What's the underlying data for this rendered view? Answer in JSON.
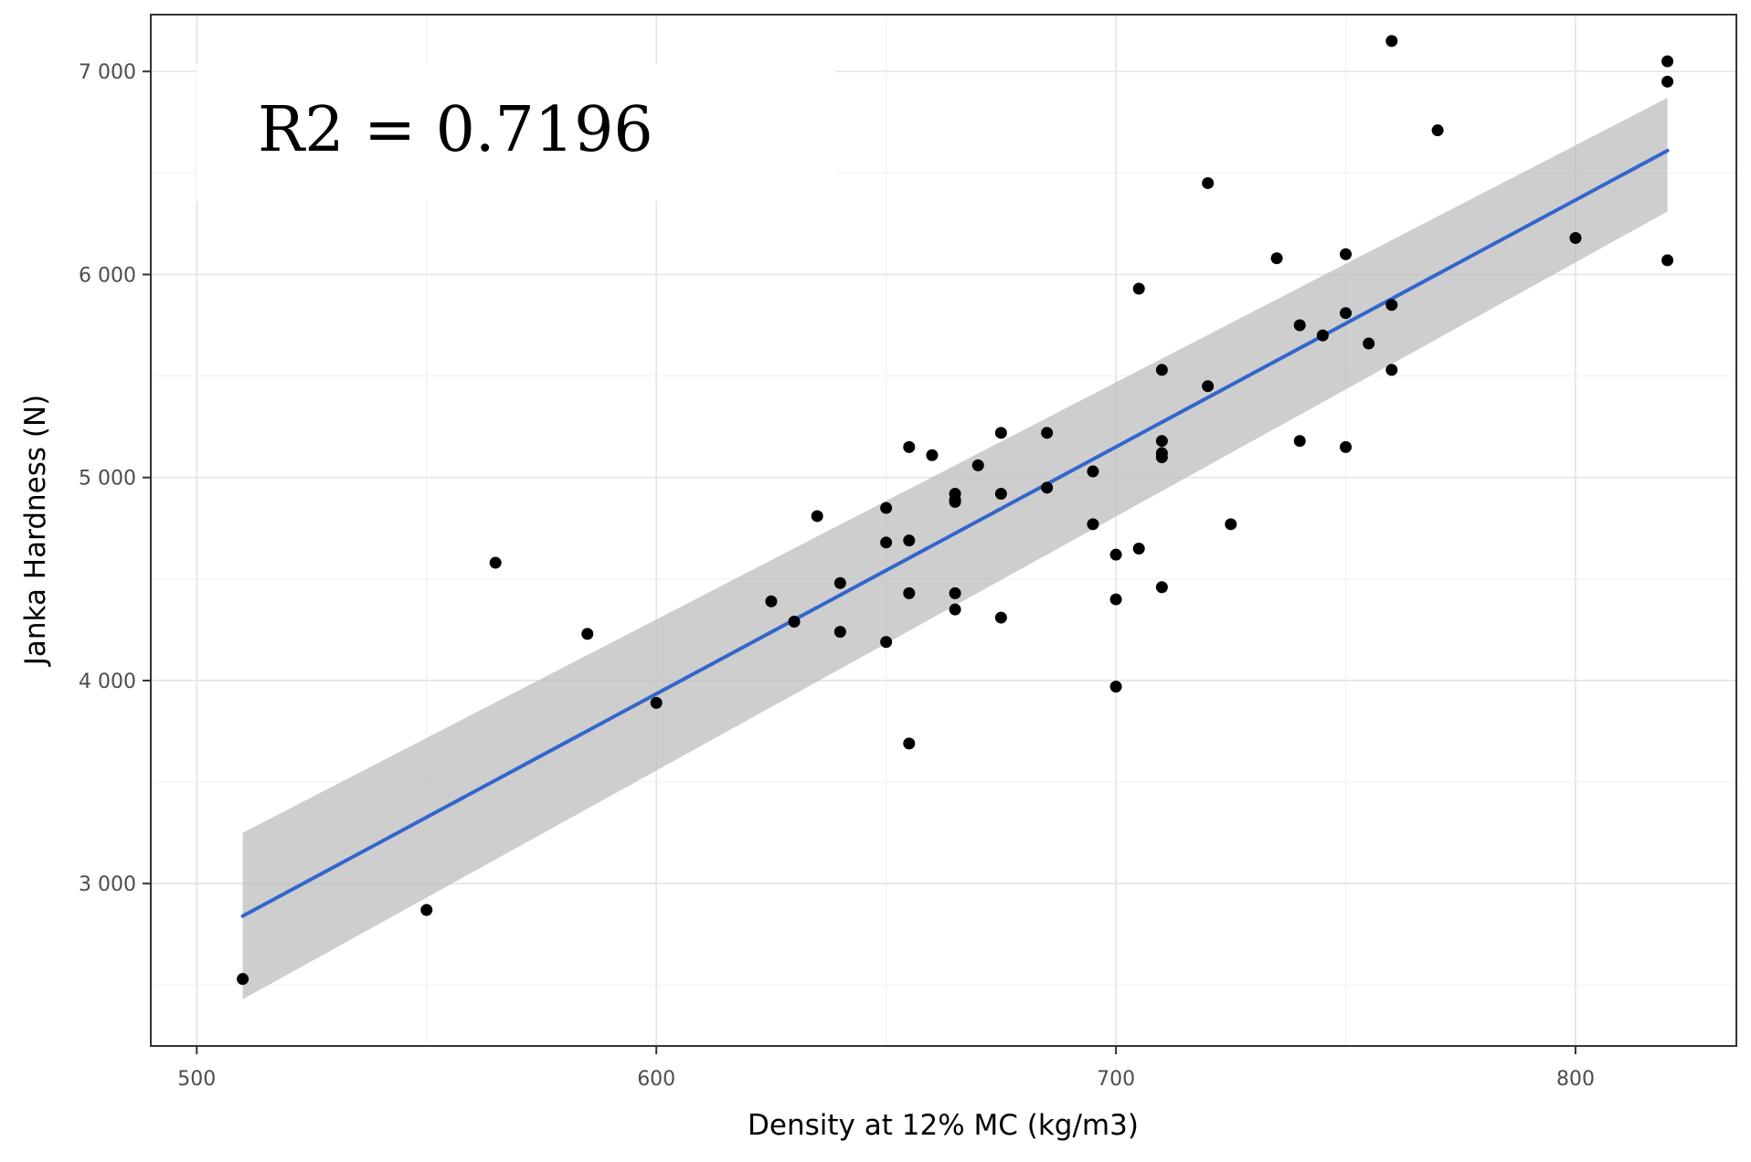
{
  "chart_data": {
    "type": "scatter",
    "title": "",
    "xlabel": "Density at 12% MC (kg/m3)",
    "ylabel": "Janka Hardness (N)",
    "xlim": [
      490,
      835
    ],
    "ylim": [
      2200,
      7280
    ],
    "xticks": [
      500,
      600,
      700,
      800
    ],
    "xtick_labels": [
      "500",
      "600",
      "700",
      "800"
    ],
    "yticks": [
      3000,
      4000,
      5000,
      6000,
      7000
    ],
    "ytick_labels": [
      "3 000",
      "4 000",
      "5 000",
      "6 000",
      "7 000"
    ],
    "grid": true,
    "annotation": "R2 = 0.7196",
    "fit": {
      "type": "linear",
      "x": [
        510,
        820
      ],
      "y": [
        2840,
        6610
      ],
      "ci_lower": [
        2430,
        6310
      ],
      "ci_upper": [
        3250,
        6870
      ],
      "ci_color": "#bebebe",
      "line_color": "#3366cc"
    },
    "points": {
      "color": "#000000",
      "x": [
        510,
        550,
        565,
        585,
        600,
        625,
        630,
        635,
        640,
        640,
        650,
        650,
        650,
        655,
        655,
        655,
        655,
        660,
        665,
        665,
        665,
        665,
        665,
        670,
        675,
        675,
        675,
        685,
        685,
        695,
        695,
        700,
        700,
        700,
        705,
        705,
        710,
        710,
        710,
        710,
        710,
        720,
        720,
        725,
        735,
        740,
        740,
        745,
        750,
        750,
        750,
        755,
        760,
        760,
        760,
        770,
        800,
        820,
        820,
        820
      ],
      "y": [
        2530,
        2870,
        4580,
        4230,
        3890,
        4390,
        4290,
        4810,
        4480,
        4240,
        4850,
        4680,
        4190,
        5150,
        4690,
        4430,
        3690,
        5110,
        4920,
        4880,
        4430,
        4350,
        4890,
        5060,
        5220,
        4920,
        4310,
        5220,
        4950,
        5030,
        4770,
        4620,
        4400,
        3970,
        5930,
        4650,
        5530,
        5180,
        5120,
        5100,
        4460,
        6450,
        5450,
        4770,
        6080,
        5750,
        5180,
        5700,
        6100,
        5810,
        5150,
        5660,
        7150,
        5850,
        5530,
        6710,
        6180,
        7050,
        6950,
        6070
      ]
    }
  }
}
